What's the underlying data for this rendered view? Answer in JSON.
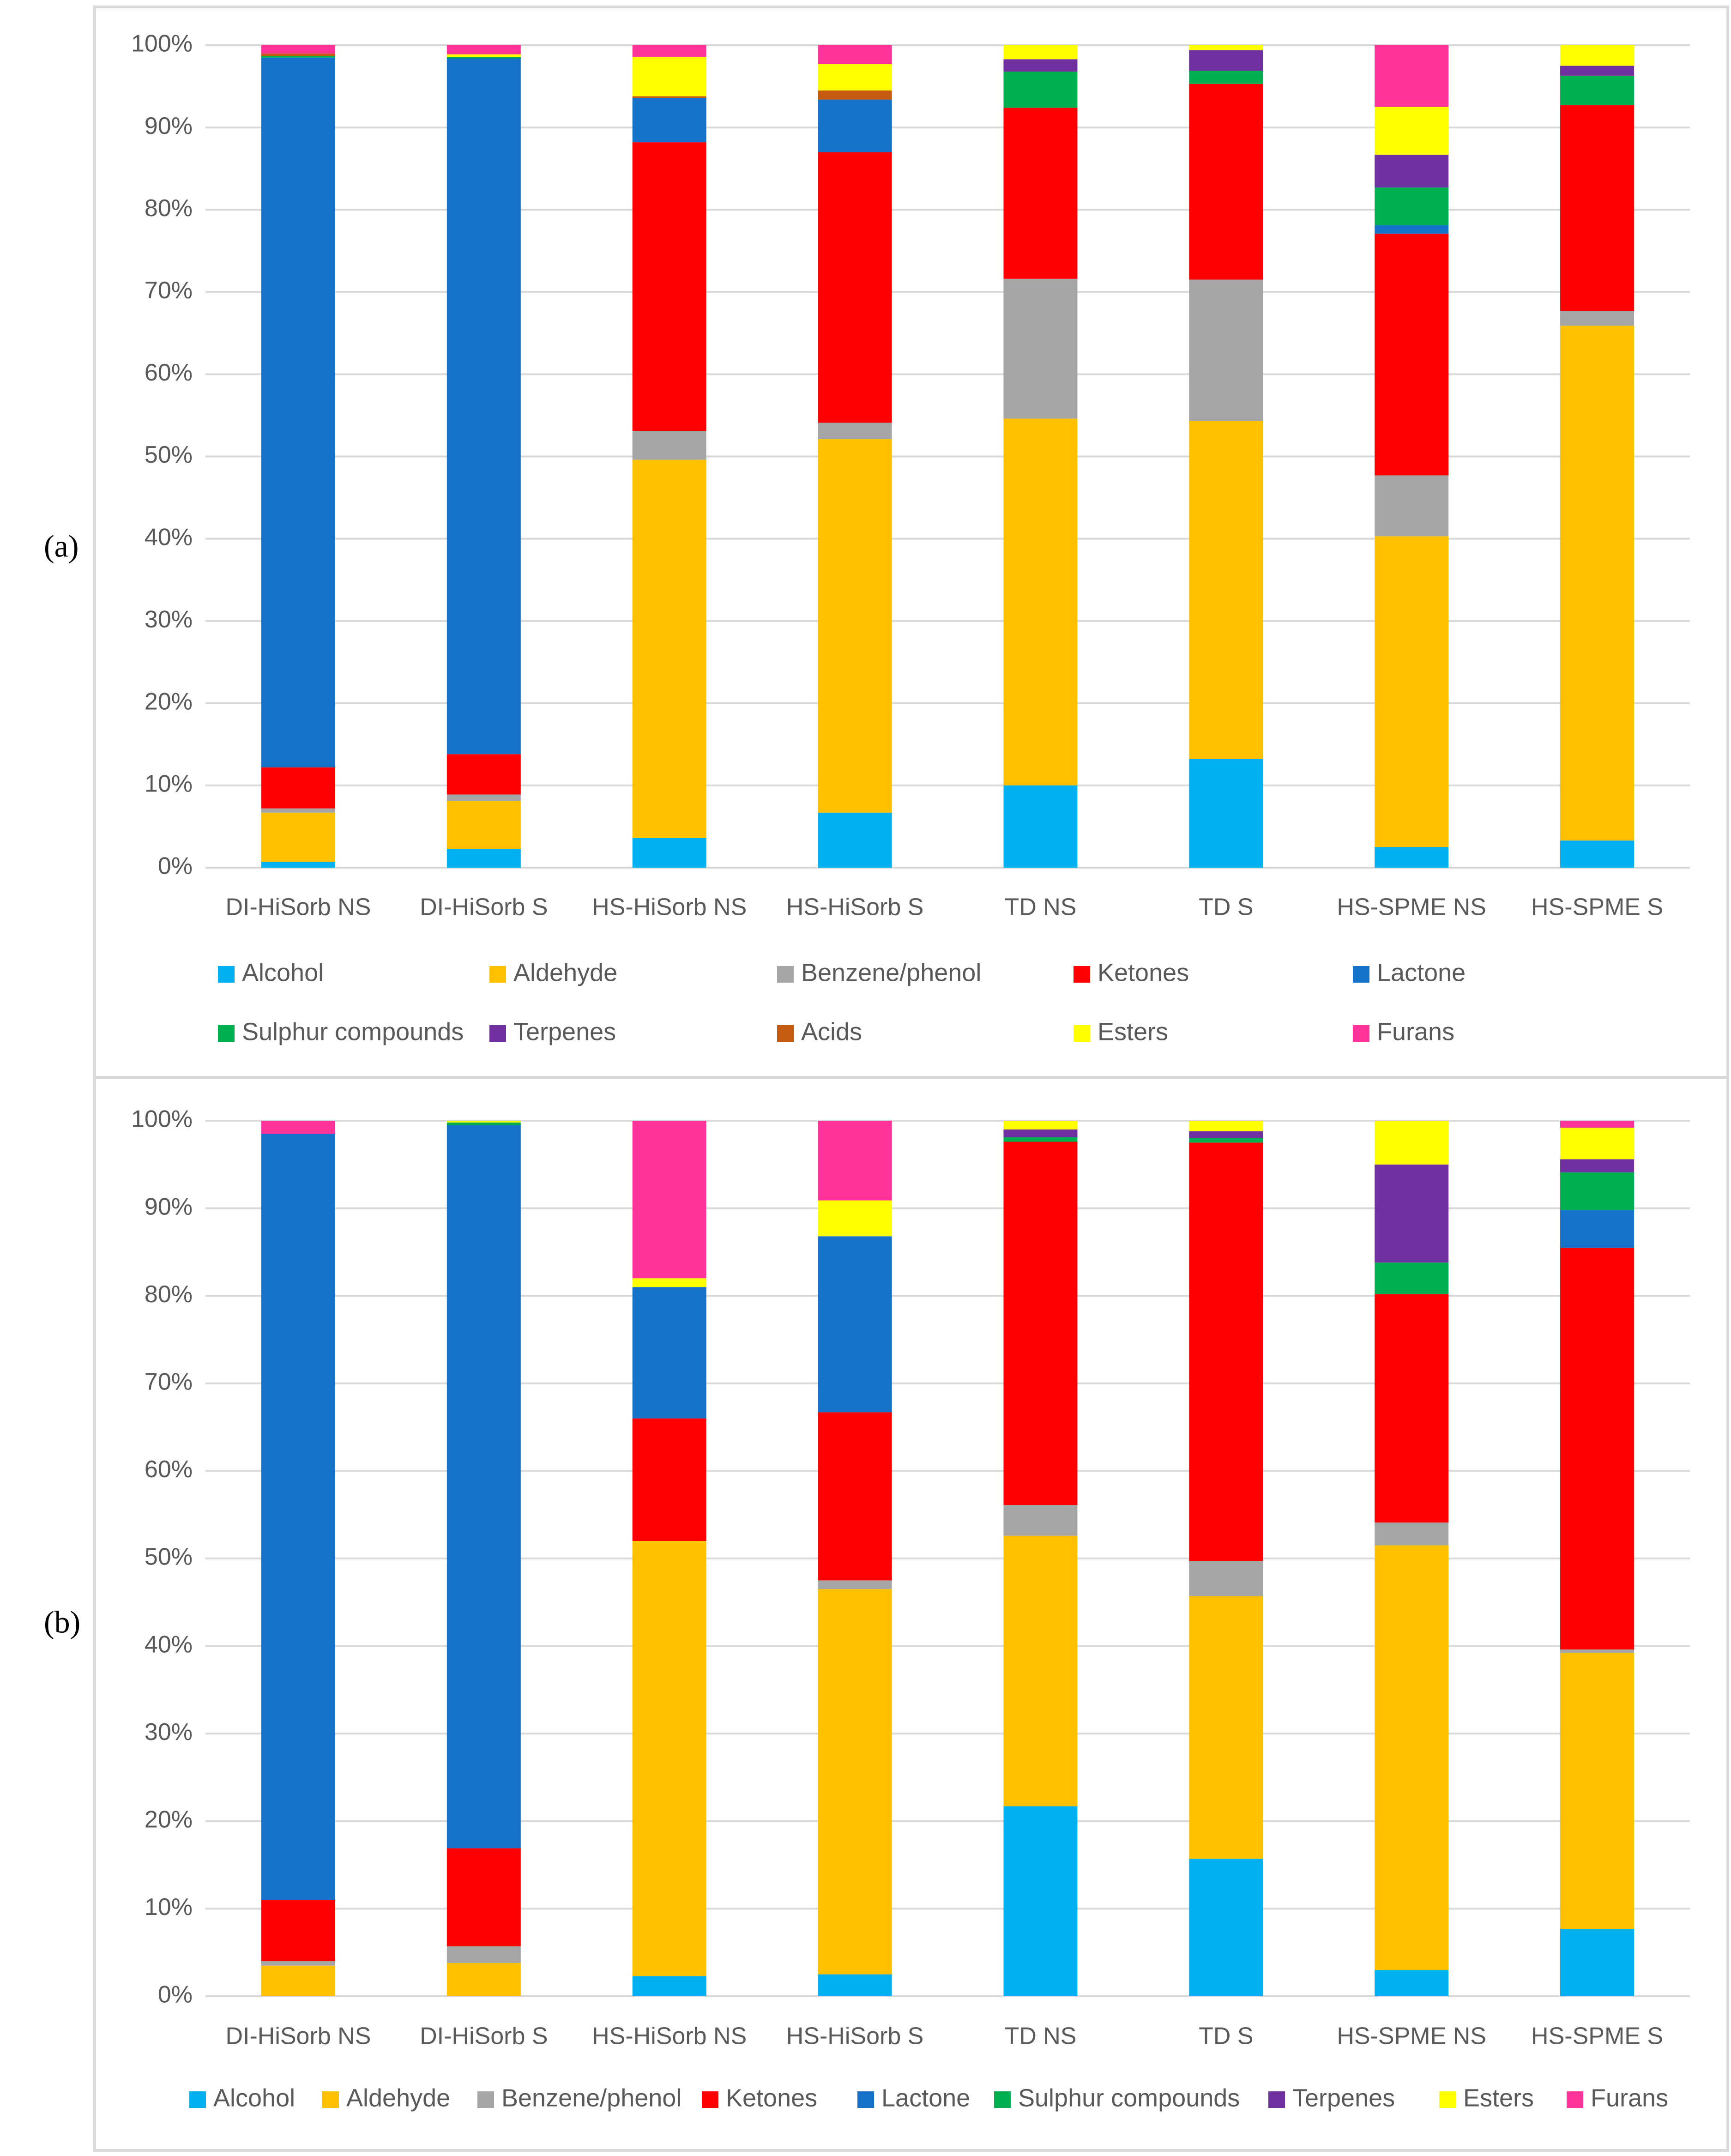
{
  "figure": {
    "panel_labels": [
      "(a)",
      "(b)"
    ]
  },
  "colors": {
    "Alcohol": "#00B0F0",
    "Aldehyde": "#FFC000",
    "Benzene/phenol": "#A5A5A5",
    "Ketones": "#FF0000",
    "Lactone": "#1671C8",
    "Sulphur compounds": "#00B050",
    "Terpenes": "#7030A0",
    "Acids": "#C55A11",
    "Esters": "#FFFF00",
    "Furans": "#FF3399",
    "text": "#595959",
    "gridline": "#D9D9D9",
    "frame": "#D9D9D9"
  },
  "chart_data": [
    {
      "type": "bar",
      "stacked": true,
      "normalized": true,
      "panel": "(a)",
      "title": "",
      "xlabel": "",
      "ylabel": "",
      "ylim": [
        0,
        100
      ],
      "yticks": [
        "0%",
        "10%",
        "20%",
        "30%",
        "40%",
        "50%",
        "60%",
        "70%",
        "80%",
        "90%",
        "100%"
      ],
      "categories": [
        "DI-HiSorb NS",
        "DI-HiSorb S",
        "HS-HiSorb NS",
        "HS-HiSorb S",
        "TD NS",
        "TD S",
        "HS-SPME NS",
        "HS-SPME S"
      ],
      "legend": [
        "Alcohol",
        "Aldehyde",
        "Benzene/phenol",
        "Ketones",
        "Lactone",
        "Sulphur compounds",
        "Terpenes",
        "Acids",
        "Esters",
        "Furans"
      ],
      "legend_position": "bottom",
      "series": [
        {
          "name": "Alcohol",
          "values": [
            0.7,
            2.3,
            3.6,
            6.7,
            10.0,
            13.2,
            2.5,
            3.3
          ]
        },
        {
          "name": "Aldehyde",
          "values": [
            6.0,
            5.8,
            46.0,
            45.4,
            44.6,
            41.1,
            37.8,
            62.6
          ]
        },
        {
          "name": "Benzene/phenol",
          "values": [
            0.5,
            0.8,
            3.5,
            2.0,
            17.0,
            17.2,
            7.4,
            1.8
          ]
        },
        {
          "name": "Ketones",
          "values": [
            5.0,
            4.9,
            35.1,
            32.9,
            20.8,
            23.8,
            29.4,
            25.0
          ]
        },
        {
          "name": "Lactone",
          "values": [
            86.3,
            84.6,
            5.4,
            6.4,
            0.0,
            0.0,
            1.0,
            0.0
          ]
        },
        {
          "name": "Sulphur compounds",
          "values": [
            0.2,
            0.2,
            0.0,
            0.0,
            4.4,
            1.6,
            4.6,
            3.6
          ]
        },
        {
          "name": "Terpenes",
          "values": [
            0.0,
            0.0,
            0.0,
            0.0,
            1.5,
            2.5,
            4.0,
            1.2
          ]
        },
        {
          "name": "Acids",
          "values": [
            0.3,
            0.0,
            0.2,
            1.1,
            0.0,
            0.0,
            0.0,
            0.0
          ]
        },
        {
          "name": "Esters",
          "values": [
            0.0,
            0.3,
            4.8,
            3.2,
            1.7,
            0.6,
            5.8,
            2.5
          ]
        },
        {
          "name": "Furans",
          "values": [
            1.0,
            1.1,
            1.4,
            2.3,
            0.0,
            0.0,
            7.5,
            0.0
          ]
        }
      ]
    },
    {
      "type": "bar",
      "stacked": true,
      "normalized": true,
      "panel": "(b)",
      "title": "",
      "xlabel": "",
      "ylabel": "",
      "ylim": [
        0,
        100
      ],
      "yticks": [
        "0%",
        "10%",
        "20%",
        "30%",
        "40%",
        "50%",
        "60%",
        "70%",
        "80%",
        "90%",
        "100%"
      ],
      "categories": [
        "DI-HiSorb NS",
        "DI-HiSorb S",
        "HS-HiSorb NS",
        "HS-HiSorb S",
        "TD NS",
        "TD S",
        "HS-SPME NS",
        "HS-SPME S"
      ],
      "legend": [
        "Alcohol",
        "Aldehyde",
        "Benzene/phenol",
        "Ketones",
        "Lactone",
        "Sulphur compounds",
        "Terpenes",
        "Esters",
        "Furans"
      ],
      "legend_position": "bottom",
      "series": [
        {
          "name": "Alcohol",
          "values": [
            0.0,
            0.0,
            2.3,
            2.5,
            21.7,
            15.7,
            3.0,
            7.7
          ]
        },
        {
          "name": "Aldehyde",
          "values": [
            3.5,
            3.8,
            49.7,
            44.0,
            30.9,
            30.0,
            48.5,
            31.5
          ]
        },
        {
          "name": "Benzene/phenol",
          "values": [
            0.5,
            1.9,
            0.0,
            1.0,
            3.5,
            4.0,
            2.6,
            0.4
          ]
        },
        {
          "name": "Ketones",
          "values": [
            7.0,
            11.2,
            14.0,
            19.2,
            41.5,
            47.8,
            26.1,
            45.9
          ]
        },
        {
          "name": "Lactone",
          "values": [
            87.5,
            82.6,
            15.0,
            20.1,
            0.0,
            0.0,
            0.0,
            4.3
          ]
        },
        {
          "name": "Sulphur compounds",
          "values": [
            0.0,
            0.3,
            0.0,
            0.0,
            0.5,
            0.5,
            3.6,
            4.3
          ]
        },
        {
          "name": "Terpenes",
          "values": [
            0.0,
            0.0,
            0.0,
            0.0,
            0.9,
            0.8,
            11.2,
            1.5
          ]
        },
        {
          "name": "Esters",
          "values": [
            0.0,
            0.2,
            1.0,
            4.1,
            1.0,
            1.2,
            5.0,
            3.6
          ]
        },
        {
          "name": "Furans",
          "values": [
            1.5,
            0.0,
            18.0,
            9.1,
            0.0,
            0.0,
            0.0,
            0.8
          ]
        }
      ]
    }
  ]
}
